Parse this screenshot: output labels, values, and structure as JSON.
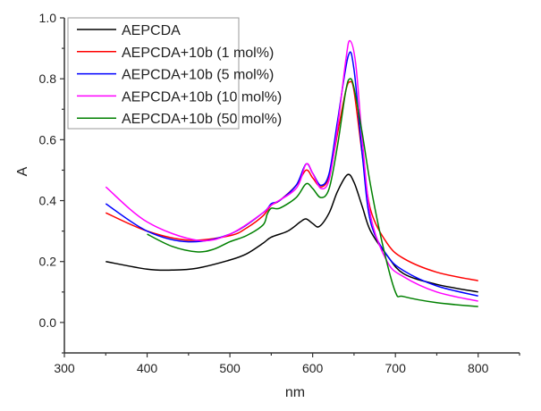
{
  "chart_data": {
    "type": "line",
    "title": "",
    "xlabel": "nm",
    "ylabel": "A",
    "xlim": [
      300,
      850
    ],
    "ylim": [
      -0.1,
      1.0
    ],
    "xticks": [
      300,
      400,
      500,
      600,
      700,
      800
    ],
    "xtick_labels": [
      "300",
      "400",
      "500",
      "600",
      "700",
      "800"
    ],
    "yticks": [
      0.0,
      0.2,
      0.4,
      0.6,
      0.8,
      1.0
    ],
    "ytick_labels": [
      "0.0",
      "0.2",
      "0.4",
      "0.6",
      "0.8",
      "1.0"
    ],
    "grid": false,
    "legend_position": "top-left",
    "series": [
      {
        "name": "AEPCDA",
        "color": "#000000",
        "x": [
          350,
          400,
          430,
          460,
          500,
          520,
          540,
          550,
          570,
          585,
          592,
          600,
          608,
          620,
          630,
          642,
          650,
          660,
          670,
          690,
          710,
          750,
          800
        ],
        "y": [
          0.2,
          0.175,
          0.172,
          0.178,
          0.205,
          0.225,
          0.26,
          0.28,
          0.3,
          0.33,
          0.34,
          0.325,
          0.315,
          0.36,
          0.43,
          0.485,
          0.46,
          0.38,
          0.3,
          0.22,
          0.16,
          0.125,
          0.1
        ]
      },
      {
        "name": "AEPCDA+10b (1 mol%)",
        "color": "#ff0000",
        "x": [
          350,
          400,
          450,
          500,
          520,
          540,
          550,
          560,
          580,
          592,
          600,
          610,
          620,
          630,
          640,
          645,
          650,
          660,
          670,
          690,
          710,
          750,
          800
        ],
        "y": [
          0.36,
          0.3,
          0.27,
          0.285,
          0.31,
          0.35,
          0.385,
          0.4,
          0.45,
          0.5,
          0.475,
          0.445,
          0.48,
          0.62,
          0.76,
          0.79,
          0.76,
          0.55,
          0.37,
          0.26,
          0.21,
          0.165,
          0.137
        ]
      },
      {
        "name": "AEPCDA+10b (5 mol%)",
        "color": "#0000ff",
        "x": [
          350,
          400,
          450,
          500,
          540,
          550,
          560,
          580,
          592,
          600,
          610,
          620,
          630,
          643,
          650,
          660,
          670,
          690,
          710,
          750,
          800
        ],
        "y": [
          0.39,
          0.3,
          0.265,
          0.29,
          0.36,
          0.39,
          0.4,
          0.45,
          0.52,
          0.49,
          0.45,
          0.49,
          0.66,
          0.875,
          0.83,
          0.55,
          0.33,
          0.22,
          0.17,
          0.12,
          0.087
        ]
      },
      {
        "name": "AEPCDA+10b (10 mol%)",
        "color": "#ff00ff",
        "x": [
          350,
          400,
          460,
          500,
          540,
          550,
          580,
          592,
          600,
          610,
          620,
          630,
          640,
          645,
          652,
          660,
          670,
          690,
          710,
          750,
          800
        ],
        "y": [
          0.445,
          0.33,
          0.27,
          0.29,
          0.36,
          0.385,
          0.44,
          0.52,
          0.49,
          0.44,
          0.47,
          0.64,
          0.86,
          0.925,
          0.85,
          0.6,
          0.35,
          0.2,
          0.15,
          0.1,
          0.07
        ]
      },
      {
        "name": "AEPCDA+10b (50 mol%)",
        "color": "#008000",
        "x": [
          400,
          430,
          460,
          480,
          500,
          520,
          540,
          545,
          550,
          560,
          580,
          592,
          600,
          610,
          620,
          630,
          640,
          645,
          650,
          660,
          670,
          685,
          700,
          710,
          750,
          800
        ],
        "y": [
          0.29,
          0.25,
          0.232,
          0.24,
          0.265,
          0.285,
          0.32,
          0.355,
          0.375,
          0.375,
          0.41,
          0.455,
          0.44,
          0.41,
          0.44,
          0.58,
          0.76,
          0.8,
          0.77,
          0.62,
          0.45,
          0.25,
          0.1,
          0.085,
          0.065,
          0.052
        ]
      }
    ]
  }
}
